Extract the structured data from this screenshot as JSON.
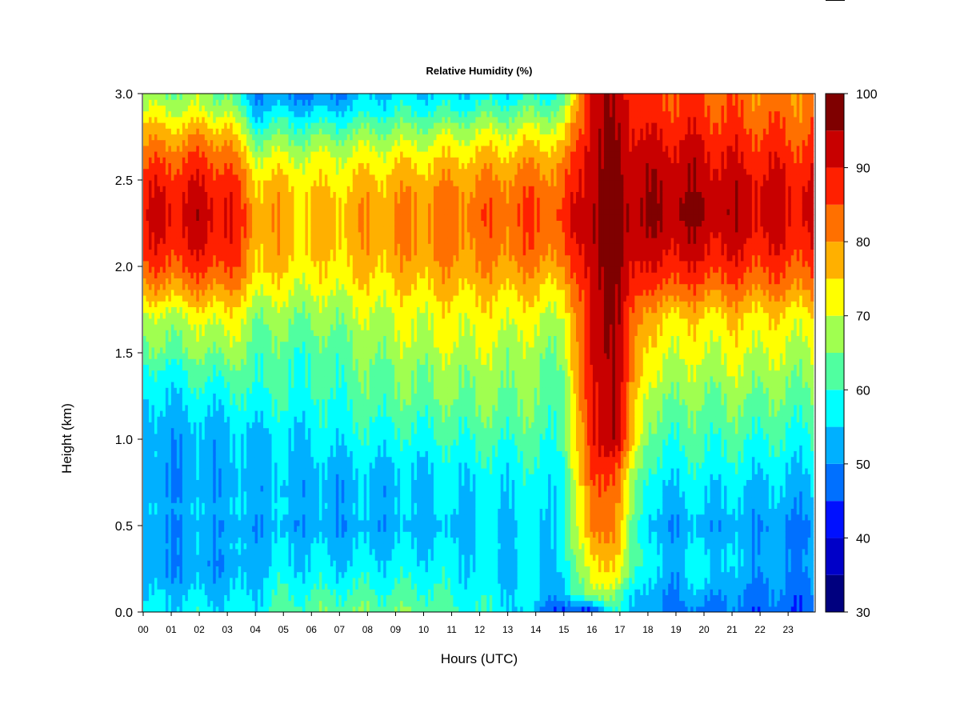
{
  "chart_data": {
    "type": "heatmap",
    "title": "Relative Humidity (%)",
    "xlabel": "Hours (UTC)",
    "ylabel": "Height (km)",
    "x_ticks": [
      "00",
      "01",
      "02",
      "03",
      "04",
      "05",
      "06",
      "07",
      "08",
      "09",
      "10",
      "11",
      "12",
      "13",
      "14",
      "15",
      "16",
      "17",
      "18",
      "19",
      "20",
      "21",
      "22",
      "23"
    ],
    "xlim": [
      0,
      23.9
    ],
    "y_ticks": [
      "0.0",
      "0.5",
      "1.0",
      "1.5",
      "2.0",
      "2.5",
      "3.0"
    ],
    "ylim": [
      0,
      3.0
    ],
    "colorbar": {
      "ticks": [
        "30",
        "40",
        "50",
        "60",
        "70",
        "80",
        "90",
        "100"
      ],
      "range": [
        30,
        100
      ],
      "levels": [
        30,
        35,
        40,
        45,
        50,
        55,
        60,
        65,
        70,
        75,
        80,
        85,
        90,
        95,
        100
      ],
      "colors": [
        "#00007f",
        "#0000c8",
        "#0010ff",
        "#0070ff",
        "#00b0ff",
        "#00ffff",
        "#50ffa0",
        "#a0ff50",
        "#ffff00",
        "#ffb000",
        "#ff7000",
        "#ff2000",
        "#c80000",
        "#7f0000"
      ]
    },
    "hours": [
      0,
      1,
      2,
      3,
      4,
      5,
      6,
      7,
      8,
      9,
      10,
      11,
      12,
      13,
      14,
      15,
      16,
      17,
      18,
      19,
      20,
      21,
      22,
      23
    ],
    "heights_km": [
      0.0,
      0.1,
      0.2,
      0.3,
      0.4,
      0.5,
      0.6,
      0.7,
      0.8,
      0.9,
      1.0,
      1.1,
      1.2,
      1.3,
      1.4,
      1.5,
      1.6,
      1.7,
      1.8,
      1.9,
      2.0,
      2.1,
      2.2,
      2.3,
      2.4,
      2.5,
      2.6,
      2.7,
      2.8,
      2.9,
      3.0
    ],
    "values": [
      [
        57,
        54,
        51,
        50,
        52,
        50,
        53,
        50,
        51,
        52,
        51,
        52,
        54,
        56,
        58,
        63,
        65,
        67,
        74,
        79,
        84,
        87,
        89,
        90,
        89,
        87,
        84,
        80,
        76,
        70,
        66
      ],
      [
        57,
        55,
        52,
        51,
        52,
        50,
        53,
        51,
        51,
        52,
        52,
        53,
        55,
        57,
        59,
        64,
        66,
        68,
        75,
        80,
        85,
        88,
        90,
        91,
        90,
        88,
        85,
        81,
        76,
        70,
        66
      ],
      [
        57,
        55,
        52,
        51,
        53,
        51,
        54,
        51,
        52,
        53,
        53,
        54,
        56,
        59,
        61,
        65,
        68,
        70,
        76,
        81,
        86,
        89,
        91,
        92,
        91,
        89,
        86,
        82,
        77,
        70,
        66
      ],
      [
        57,
        55,
        52,
        51,
        53,
        51,
        54,
        52,
        52,
        53,
        53,
        55,
        57,
        60,
        63,
        67,
        70,
        73,
        77,
        82,
        86,
        89,
        90,
        91,
        90,
        88,
        85,
        81,
        76,
        69,
        65
      ],
      [
        58,
        56,
        54,
        53,
        53,
        51,
        54,
        53,
        53,
        54,
        54,
        56,
        59,
        61,
        62,
        63,
        65,
        66,
        70,
        74,
        77,
        78,
        79,
        79,
        78,
        76,
        72,
        67,
        61,
        54,
        50
      ],
      [
        63,
        60,
        58,
        56,
        55,
        52,
        55,
        53,
        54,
        55,
        55,
        57,
        59,
        60,
        60,
        62,
        64,
        66,
        69,
        72,
        75,
        77,
        77,
        78,
        77,
        75,
        72,
        67,
        62,
        56,
        50
      ],
      [
        63,
        60,
        57,
        55,
        54,
        51,
        53,
        52,
        53,
        54,
        55,
        57,
        58,
        60,
        60,
        61,
        63,
        65,
        68,
        71,
        73,
        75,
        76,
        76,
        75,
        73,
        71,
        67,
        61,
        55,
        47
      ],
      [
        64,
        61,
        57,
        55,
        54,
        51,
        53,
        52,
        53,
        55,
        57,
        59,
        60,
        61,
        62,
        63,
        65,
        67,
        69,
        72,
        75,
        76,
        77,
        77,
        76,
        74,
        72,
        68,
        62,
        56,
        50
      ],
      [
        64,
        61,
        58,
        56,
        54,
        52,
        54,
        53,
        54,
        56,
        58,
        60,
        62,
        63,
        64,
        66,
        67,
        69,
        71,
        74,
        76,
        78,
        78,
        79,
        78,
        76,
        73,
        69,
        64,
        58,
        54
      ],
      [
        64,
        61,
        58,
        56,
        55,
        52,
        54,
        53,
        54,
        56,
        58,
        60,
        63,
        64,
        65,
        67,
        69,
        70,
        72,
        75,
        77,
        79,
        80,
        80,
        79,
        77,
        74,
        70,
        65,
        59,
        55
      ],
      [
        64,
        62,
        59,
        57,
        55,
        53,
        55,
        54,
        55,
        57,
        59,
        61,
        63,
        65,
        66,
        68,
        70,
        71,
        73,
        76,
        78,
        80,
        81,
        81,
        80,
        78,
        75,
        71,
        66,
        60,
        55
      ],
      [
        61,
        59,
        57,
        56,
        55,
        53,
        55,
        55,
        56,
        58,
        60,
        62,
        64,
        66,
        67,
        69,
        71,
        72,
        74,
        77,
        79,
        81,
        82,
        82,
        81,
        79,
        76,
        72,
        67,
        60,
        55
      ],
      [
        59,
        58,
        57,
        56,
        56,
        55,
        56,
        56,
        57,
        59,
        61,
        63,
        65,
        66,
        67,
        69,
        71,
        72,
        74,
        77,
        79,
        81,
        82,
        83,
        82,
        80,
        77,
        73,
        68,
        62,
        56
      ],
      [
        57,
        56,
        55,
        55,
        56,
        55,
        56,
        56,
        57,
        59,
        61,
        63,
        65,
        66,
        67,
        68,
        70,
        72,
        74,
        77,
        80,
        82,
        83,
        84,
        83,
        81,
        78,
        74,
        69,
        63,
        57
      ],
      [
        52,
        56,
        56,
        55,
        56,
        56,
        57,
        57,
        58,
        60,
        62,
        63,
        64,
        65,
        66,
        67,
        69,
        71,
        74,
        77,
        80,
        83,
        84,
        85,
        84,
        82,
        79,
        75,
        70,
        64,
        58
      ],
      [
        42,
        52,
        54,
        55,
        56,
        56,
        57,
        57,
        58,
        59,
        60,
        61,
        62,
        63,
        64,
        65,
        67,
        69,
        72,
        75,
        79,
        82,
        84,
        85,
        84,
        82,
        80,
        76,
        71,
        66,
        60
      ],
      [
        44,
        70,
        74,
        76,
        80,
        84,
        85,
        86,
        88,
        90,
        92,
        92,
        92,
        92,
        92,
        93,
        93,
        93,
        93,
        94,
        95,
        96,
        97,
        97,
        96,
        96,
        95,
        95,
        94,
        94,
        93
      ],
      [
        60,
        62,
        70,
        73,
        76,
        77,
        78,
        80,
        81,
        86,
        92,
        92,
        92,
        92,
        93,
        93,
        93,
        94,
        94,
        95,
        96,
        97,
        97,
        97,
        96,
        96,
        95,
        95,
        94,
        93,
        93
      ],
      [
        50,
        52,
        54,
        56,
        54,
        52,
        55,
        56,
        58,
        60,
        62,
        64,
        66,
        68,
        70,
        72,
        74,
        76,
        80,
        85,
        88,
        91,
        93,
        95,
        94,
        93,
        92,
        90,
        88,
        86,
        85
      ],
      [
        49,
        50,
        52,
        54,
        53,
        51,
        54,
        55,
        57,
        59,
        61,
        63,
        65,
        67,
        69,
        71,
        73,
        75,
        80,
        86,
        89,
        92,
        94,
        96,
        95,
        94,
        93,
        91,
        89,
        87,
        86
      ],
      [
        48,
        52,
        58,
        58,
        55,
        52,
        55,
        56,
        58,
        60,
        61,
        63,
        64,
        66,
        68,
        70,
        72,
        74,
        79,
        84,
        88,
        91,
        93,
        95,
        94,
        93,
        92,
        90,
        88,
        86,
        85
      ],
      [
        48,
        50,
        52,
        54,
        53,
        51,
        54,
        55,
        57,
        59,
        61,
        63,
        65,
        67,
        69,
        71,
        73,
        75,
        79,
        84,
        87,
        90,
        92,
        93,
        93,
        92,
        90,
        88,
        86,
        84,
        83
      ],
      [
        47,
        49,
        51,
        53,
        52,
        51,
        53,
        54,
        56,
        58,
        60,
        62,
        64,
        66,
        68,
        70,
        72,
        74,
        78,
        83,
        86,
        89,
        91,
        92,
        92,
        91,
        89,
        87,
        85,
        83,
        82
      ],
      [
        46,
        48,
        50,
        51,
        50,
        49,
        52,
        53,
        55,
        57,
        59,
        61,
        63,
        65,
        67,
        69,
        71,
        73,
        77,
        82,
        85,
        88,
        90,
        91,
        91,
        90,
        88,
        86,
        84,
        82,
        81
      ]
    ]
  }
}
